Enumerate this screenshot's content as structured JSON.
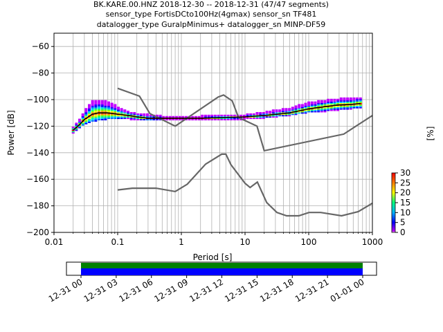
{
  "header": {
    "title_lines": [
      "BK.KARE.00.HNZ   2018-12-30 -- 2018-12-31  (47/47 segments)",
      "sensor_type FortisDCto100Hz(4gmax) sensor_sn TF481",
      "datalogger_type GuralpMinimus+ datalogger_sn MINP-DF59"
    ]
  },
  "colors": {
    "noise_model": "#666666",
    "mode_line": "#000000",
    "grid": "#b0b0b0",
    "coverage_top": "#008000",
    "coverage_bottom": "#0000ff"
  },
  "chart_data": [
    {
      "type": "heatmap",
      "title": "",
      "xlabel": "Period [s]",
      "ylabel": "Power [dB]",
      "xscale": "log",
      "xlim": [
        0.01,
        1000
      ],
      "ylim": [
        -200,
        -50
      ],
      "x_ticks": [
        0.01,
        0.1,
        1,
        10,
        100,
        1000
      ],
      "x_tick_labels": [
        "0.01",
        "0.1",
        "1",
        "10",
        "100",
        "1000"
      ],
      "y_ticks": [
        -200,
        -180,
        -160,
        -140,
        -120,
        -100,
        -80,
        -60
      ],
      "y_tick_labels": [
        "−200",
        "−180",
        "−160",
        "−140",
        "−120",
        "−100",
        "−80",
        "−60"
      ],
      "grid": true,
      "colorbar": {
        "label": "[%]",
        "min": 0,
        "max": 30,
        "ticks": [
          0,
          5,
          10,
          15,
          20,
          25,
          30
        ],
        "tick_labels": [
          "0",
          "5",
          "10",
          "15",
          "20",
          "25",
          "30"
        ]
      },
      "noise_model_high": {
        "x": [
          0.1,
          0.22,
          0.32,
          0.8,
          3.8,
          4.6,
          6.3,
          7.9,
          15.4,
          20,
          354.8,
          1000
        ],
        "y": [
          -91.5,
          -97.4,
          -110.5,
          -120,
          -98,
          -96.5,
          -101,
          -113.5,
          -120,
          -138.5,
          -126,
          -112
        ]
      },
      "noise_model_low": {
        "x": [
          0.1,
          0.17,
          0.4,
          0.8,
          1.24,
          2.4,
          4.3,
          5,
          6,
          10,
          12,
          15.6,
          21.9,
          31.6,
          45,
          70,
          101,
          154,
          328,
          600,
          1000
        ],
        "y": [
          -168,
          -166.7,
          -166.7,
          -169.2,
          -163.7,
          -148.6,
          -141.1,
          -141.1,
          -149,
          -163,
          -166.2,
          -162.1,
          -177.5,
          -185,
          -187.5,
          -187.5,
          -185,
          -185,
          -187.5,
          -184.4,
          -178
        ]
      },
      "mode": {
        "x": [
          0.02,
          0.025,
          0.03,
          0.04,
          0.05,
          0.07,
          0.1,
          0.15,
          0.2,
          0.3,
          0.5,
          1,
          2,
          5,
          10,
          20,
          50,
          100,
          200,
          300,
          500,
          650
        ],
        "y": [
          -123,
          -119,
          -115,
          -111,
          -110,
          -110,
          -111,
          -112,
          -113,
          -114,
          -114,
          -114,
          -114,
          -113.5,
          -113,
          -112,
          -110,
          -107,
          -105,
          -104,
          -103.5,
          -103
        ]
      },
      "psd_envelope": {
        "x": [
          0.02,
          0.025,
          0.03,
          0.04,
          0.05,
          0.07,
          0.1,
          0.15,
          0.2,
          0.3,
          0.5,
          1,
          2,
          5,
          10,
          20,
          50,
          100,
          200,
          300,
          500,
          650
        ],
        "upper": [
          -121,
          -116,
          -109,
          -102,
          -101,
          -102,
          -106,
          -110,
          -111,
          -112,
          -113,
          -113,
          -113,
          -112.5,
          -112,
          -110,
          -107,
          -103,
          -101,
          -100,
          -99,
          -99
        ],
        "lower": [
          -125,
          -121,
          -118,
          -116,
          -115,
          -114,
          -114,
          -114,
          -115,
          -115,
          -115,
          -115,
          -115,
          -114.5,
          -114,
          -113,
          -111,
          -109,
          -108,
          -107,
          -106,
          -106
        ]
      }
    },
    {
      "type": "bar",
      "title": "",
      "xlabel": "",
      "ylabel": "",
      "x_ticks": [
        "12-31 00",
        "12-31 03",
        "12-31 06",
        "12-31 09",
        "12-31 12",
        "12-31 15",
        "12-31 18",
        "12-31 21",
        "01-01 00"
      ],
      "series": [
        {
          "start": "12-31 00",
          "end": "01-01 00",
          "color": "#008000"
        },
        {
          "start": "12-31 00",
          "end": "01-01 00",
          "color": "#0000ff"
        }
      ]
    }
  ]
}
